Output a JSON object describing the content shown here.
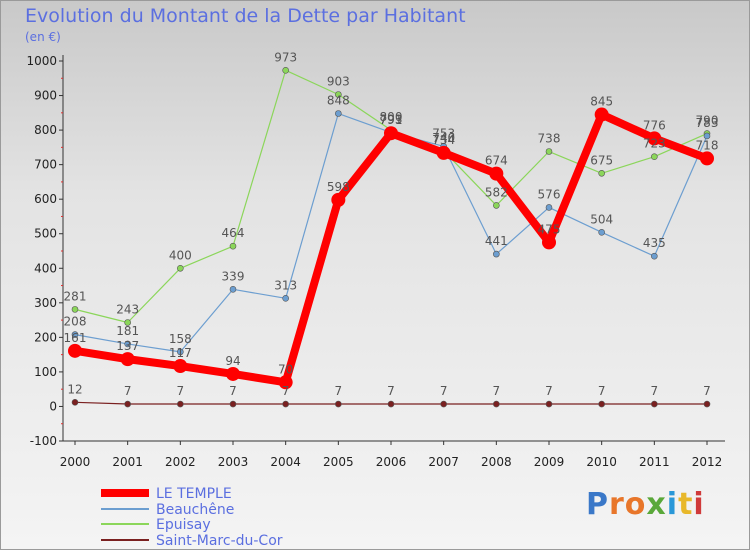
{
  "title": "Evolution du Montant de la Dette par Habitant",
  "subtitle": "(en €)",
  "logo_text": "Proxiti",
  "chart_data": {
    "type": "line",
    "title": "Evolution du Montant de la Dette par Habitant",
    "subtitle": "(en €)",
    "x": [
      2000,
      2001,
      2002,
      2003,
      2004,
      2005,
      2006,
      2007,
      2008,
      2009,
      2010,
      2011,
      2012
    ],
    "ylim": [
      -100,
      1000
    ],
    "yticks": [
      -100,
      0,
      100,
      200,
      300,
      400,
      500,
      600,
      700,
      800,
      900,
      1000
    ],
    "grid": false,
    "legend_position": "bottom-left",
    "series": [
      {
        "name": "LE TEMPLE",
        "color": "#ff0000",
        "values": [
          161,
          137,
          117,
          94,
          70,
          598,
          791,
          734,
          674,
          475,
          845,
          776,
          718
        ],
        "labels": [
          "161",
          "137",
          "117",
          "94",
          "70",
          "598",
          "791",
          "734",
          "674",
          "475",
          "845",
          "776",
          "718"
        ]
      },
      {
        "name": "Beauchêne",
        "color": "#6c9ed0",
        "values": [
          208,
          181,
          158,
          339,
          313,
          848,
          793,
          753,
          441,
          576,
          504,
          435,
          783
        ],
        "labels": [
          "208",
          "181",
          "158",
          "339",
          "313",
          "848",
          "793",
          "753",
          "441",
          "576",
          "504",
          "435",
          "783"
        ]
      },
      {
        "name": "Epuisay",
        "color": "#8bd65a",
        "values": [
          281,
          243,
          400,
          464,
          973,
          903,
          800,
          740,
          582,
          738,
          675,
          723,
          790
        ],
        "labels": [
          "281",
          "243",
          "400",
          "464",
          "973",
          "903",
          "800",
          "740",
          "582",
          "738",
          "675",
          "723",
          "790"
        ]
      },
      {
        "name": "Saint-Marc-du-Cor",
        "color": "#7a2020",
        "values": [
          12,
          7,
          7,
          7,
          7,
          7,
          7,
          7,
          7,
          7,
          7,
          7,
          7
        ],
        "labels": [
          "12",
          "7",
          "7",
          "7",
          "7",
          "7",
          "7",
          "7",
          "7",
          "7",
          "7",
          "7",
          "7"
        ]
      }
    ]
  }
}
